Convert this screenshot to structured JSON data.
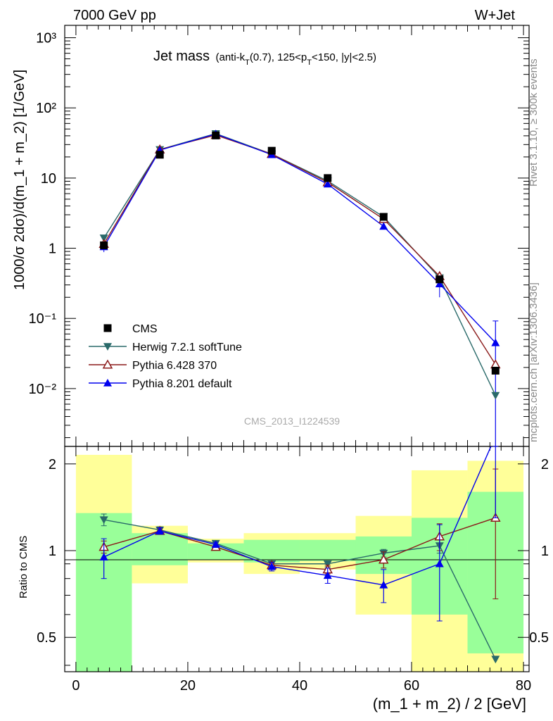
{
  "header": {
    "left": "7000 GeV pp",
    "right": "W+Jet"
  },
  "title": {
    "main": "Jet mass",
    "detail": "(anti-k_T(0.7), 125<p_T<150, |y|<2.5)"
  },
  "side_text": {
    "rivet": "Rivet 3.1.10, ≥ 300k events",
    "site": "mcplots.cern.ch [arXiv:1306.3436]"
  },
  "watermark": "CMS_2013_I1224539",
  "axes": {
    "ylabel_top": "1000/σ 2dσ)/d(m_1 + m_2) [1/GeV]",
    "ylabel_bottom": "Ratio to CMS",
    "xlabel": "(m_1 + m_2) / 2 [GeV]",
    "x_ticks": [
      "0",
      "20",
      "40",
      "60",
      "80"
    ],
    "y_ticks_top": [
      "10⁻²",
      "10⁻¹",
      "1",
      "10",
      "10²",
      "10³"
    ],
    "y_ticks_bottom": [
      "0.5",
      "1",
      "2"
    ]
  },
  "legend": [
    {
      "label": "CMS",
      "color": "#000000",
      "marker": "square"
    },
    {
      "label": "Herwig 7.2.1 softTune",
      "color": "#2a6a6a",
      "marker": "triangle-down"
    },
    {
      "label": "Pythia 6.428 370",
      "color": "#8b1a1a",
      "marker": "triangle-up-open"
    },
    {
      "label": "Pythia 8.201 default",
      "color": "#0000ee",
      "marker": "triangle-up"
    }
  ],
  "chart_data": {
    "type": "line",
    "x": [
      5,
      15,
      25,
      35,
      45,
      55,
      65,
      75
    ],
    "bin_edges": [
      0,
      10,
      20,
      30,
      40,
      50,
      60,
      70,
      80
    ],
    "xlim": [
      -2,
      81
    ],
    "ylim_top": [
      0.0015,
      1500
    ],
    "yscale_top": "log",
    "ylim_ratio": [
      0.38,
      2.3
    ],
    "yscale_ratio": "log",
    "data": {
      "name": "CMS",
      "values": [
        1.1,
        21.5,
        40.5,
        24.5,
        10.0,
        2.8,
        0.36,
        0.018
      ],
      "band_inner": [
        [
          0.38,
          1.35
        ],
        [
          0.89,
          1.15
        ],
        [
          0.93,
          1.06
        ],
        [
          0.91,
          1.09
        ],
        [
          0.92,
          1.09
        ],
        [
          0.83,
          1.12
        ],
        [
          0.6,
          1.3
        ],
        [
          0.44,
          1.6
        ]
      ],
      "band_outer": [
        [
          0.38,
          2.15
        ],
        [
          0.77,
          1.22
        ],
        [
          0.91,
          1.1
        ],
        [
          0.83,
          1.15
        ],
        [
          0.86,
          1.15
        ],
        [
          0.6,
          1.32
        ],
        [
          0.38,
          1.9
        ],
        [
          0.38,
          2.05
        ]
      ]
    },
    "series": [
      {
        "name": "Herwig 7.2.1 softTune",
        "values": [
          1.4,
          25.5,
          43,
          22,
          9.1,
          2.8,
          0.38,
          0.008
        ],
        "ratio": [
          1.28,
          1.18,
          1.06,
          0.9,
          0.9,
          0.98,
          1.04,
          0.42
        ],
        "ratio_err": [
          0.06,
          0.03,
          0.02,
          0.02,
          0.02,
          0.03,
          0.06,
          0.0
        ]
      },
      {
        "name": "Pythia 6.428 370",
        "values": [
          1.15,
          25.5,
          41,
          22,
          8.7,
          2.6,
          0.4,
          0.022
        ],
        "ratio": [
          1.03,
          1.17,
          1.03,
          0.89,
          0.86,
          0.93,
          1.12,
          1.3
        ],
        "ratio_err": [
          0.05,
          0.03,
          0.02,
          0.02,
          0.03,
          0.06,
          0.12,
          0.62
        ]
      },
      {
        "name": "Pythia 8.201 default",
        "values": [
          1.05,
          25,
          42.5,
          21.5,
          8.2,
          2.05,
          0.31,
          0.045
        ],
        "ratio": [
          0.95,
          1.17,
          1.05,
          0.88,
          0.82,
          0.76,
          0.9,
          2.5
        ],
        "ratio_err": [
          0.15,
          0.03,
          0.02,
          0.03,
          0.05,
          0.1,
          0.33,
          1.2
        ]
      }
    ]
  }
}
